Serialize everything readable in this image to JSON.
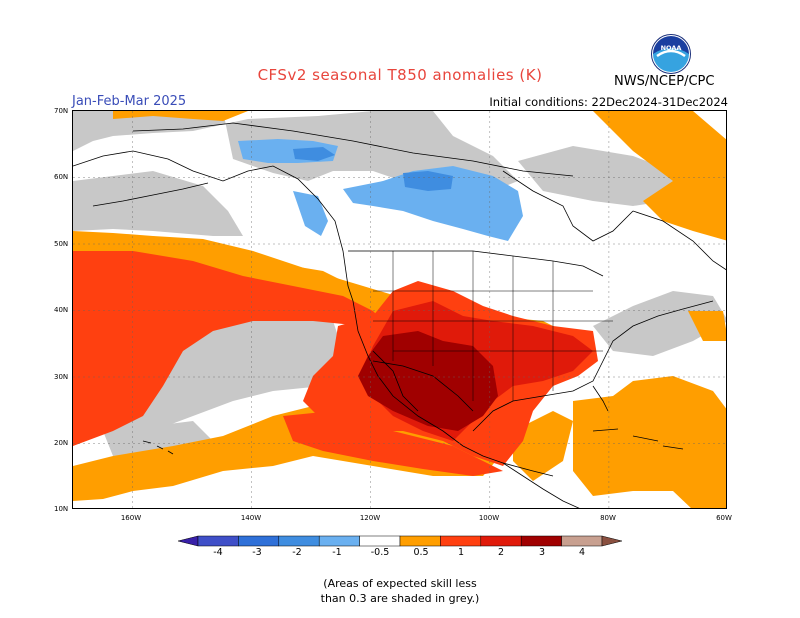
{
  "title": "CFSv2 seasonal T850 anomalies (K)",
  "season": "Jan-Feb-Mar 2025",
  "initial_conditions": "Initial conditions: 22Dec2024-31Dec2024",
  "agency": "NWS/NCEP/CPC",
  "logo": {
    "icon": "noaa-logo-icon",
    "text": "NOAA"
  },
  "map": {
    "lat_labels": [
      "70N",
      "60N",
      "50N",
      "40N",
      "30N",
      "20N",
      "10N"
    ],
    "lon_labels": [
      "160W",
      "140W",
      "120W",
      "100W",
      "80W",
      "60W"
    ],
    "lat_range": [
      10,
      70
    ],
    "lon_range": [
      -170,
      -60
    ],
    "colors": {
      "neg4": "#3820a8",
      "neg3": "#3f5ccf",
      "neg2": "#3f8de0",
      "neg1": "#6ab0f0",
      "neutral": "#ffffff",
      "pos05": "#ff9e00",
      "pos1": "#ff4010",
      "pos2": "#e01a0a",
      "pos3": "#a00000",
      "pos4": "#c8a090",
      "pos5": "#8a5040",
      "low_skill": "#c8c8c8",
      "land_lines": "#000000"
    }
  },
  "legend": {
    "labels": [
      "-4",
      "-3",
      "-2",
      "-1",
      "-0.5",
      "0.5",
      "1",
      "2",
      "3",
      "4"
    ],
    "colors": [
      "#3820a8",
      "#3f4fc8",
      "#2f70d8",
      "#3f8de0",
      "#6ab0f0",
      "#ffffff",
      "#ff9e00",
      "#ff4010",
      "#e01a0a",
      "#a00000",
      "#c8a090",
      "#8a5040"
    ]
  },
  "note": [
    "(Areas of expected skill less",
    "than 0.3 are shaded in grey.)"
  ]
}
